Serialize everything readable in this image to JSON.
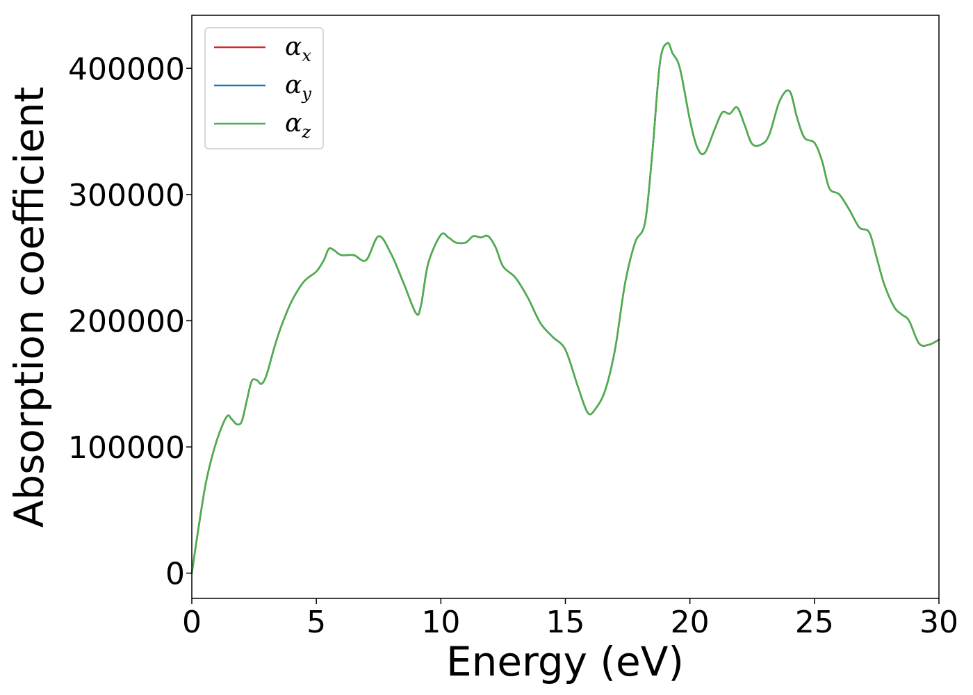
{
  "chart_data": {
    "type": "line",
    "title": "",
    "xlabel": "Energy (eV)",
    "ylabel": "Absorption coefficient",
    "xlim": [
      0,
      30
    ],
    "ylim": [
      -20000,
      442000
    ],
    "xticks": [
      0,
      5,
      10,
      15,
      20,
      25,
      30
    ],
    "yticks": [
      0,
      100000,
      200000,
      300000,
      400000
    ],
    "grid": false,
    "legend_position": "top-left",
    "legend": [
      {
        "symbol": "α",
        "subscript": "x",
        "color": "#d62728"
      },
      {
        "symbol": "α",
        "subscript": "y",
        "color": "#1f77b4"
      },
      {
        "symbol": "α",
        "subscript": "z",
        "color": "#4daf4a"
      }
    ],
    "x": [
      0,
      0.3,
      0.6,
      1.0,
      1.4,
      1.6,
      1.8,
      2.0,
      2.2,
      2.4,
      2.6,
      2.8,
      3.0,
      3.3,
      3.6,
      4.0,
      4.5,
      5.0,
      5.3,
      5.5,
      5.7,
      6.0,
      6.5,
      7.0,
      7.5,
      8.0,
      8.5,
      9.0,
      9.2,
      9.5,
      10.0,
      10.3,
      10.6,
      11.0,
      11.3,
      11.6,
      11.9,
      12.2,
      12.5,
      13.0,
      13.5,
      14.0,
      14.5,
      15.0,
      15.5,
      15.9,
      16.2,
      16.6,
      17.0,
      17.4,
      17.8,
      18.2,
      18.5,
      18.8,
      19.1,
      19.3,
      19.6,
      20.0,
      20.3,
      20.6,
      21.0,
      21.3,
      21.6,
      21.9,
      22.2,
      22.5,
      22.9,
      23.2,
      23.6,
      24.0,
      24.3,
      24.6,
      25.0,
      25.3,
      25.6,
      26.0,
      26.4,
      26.8,
      27.2,
      27.5,
      27.8,
      28.2,
      28.5,
      28.8,
      29.2,
      29.6,
      30.0
    ],
    "series": [
      {
        "label": "x",
        "color": "#d62728",
        "values": [
          0,
          40000,
          75000,
          105000,
          124000,
          122000,
          118000,
          120000,
          136000,
          152000,
          153000,
          150000,
          157000,
          178000,
          196000,
          215000,
          231000,
          239000,
          248000,
          257000,
          256000,
          252000,
          252000,
          248000,
          267000,
          253000,
          230000,
          206000,
          212000,
          246000,
          268000,
          266000,
          262000,
          262000,
          267000,
          266000,
          267000,
          258000,
          243000,
          234000,
          218000,
          198000,
          187000,
          177000,
          148000,
          127000,
          130000,
          145000,
          178000,
          230000,
          262000,
          278000,
          335000,
          405000,
          420000,
          412000,
          400000,
          359000,
          337000,
          333000,
          352000,
          365000,
          364000,
          369000,
          355000,
          340000,
          340000,
          348000,
          374000,
          382000,
          361000,
          345000,
          341000,
          327000,
          305000,
          300000,
          288000,
          274000,
          270000,
          250000,
          229000,
          211000,
          205000,
          200000,
          182000,
          181000,
          185000
        ]
      },
      {
        "label": "y",
        "color": "#1f77b4",
        "values": [
          0,
          40000,
          75000,
          105000,
          124000,
          122000,
          118000,
          120000,
          136000,
          152000,
          153000,
          150000,
          157000,
          178000,
          196000,
          215000,
          231000,
          239000,
          248000,
          257000,
          256000,
          252000,
          252000,
          248000,
          267000,
          253000,
          230000,
          206000,
          212000,
          246000,
          268000,
          266000,
          262000,
          262000,
          267000,
          266000,
          267000,
          258000,
          243000,
          234000,
          218000,
          198000,
          187000,
          177000,
          148000,
          127000,
          130000,
          145000,
          178000,
          230000,
          262000,
          278000,
          335000,
          405000,
          420000,
          412000,
          400000,
          359000,
          337000,
          333000,
          352000,
          365000,
          364000,
          369000,
          355000,
          340000,
          340000,
          348000,
          374000,
          382000,
          361000,
          345000,
          341000,
          327000,
          305000,
          300000,
          288000,
          274000,
          270000,
          250000,
          229000,
          211000,
          205000,
          200000,
          182000,
          181000,
          185000
        ]
      },
      {
        "label": "z",
        "color": "#4daf4a",
        "values": [
          0,
          40000,
          75000,
          105000,
          124000,
          122000,
          118000,
          120000,
          136000,
          152000,
          153000,
          150000,
          157000,
          178000,
          196000,
          215000,
          231000,
          239000,
          248000,
          257000,
          256000,
          252000,
          252000,
          248000,
          267000,
          253000,
          230000,
          206000,
          212000,
          246000,
          268000,
          266000,
          262000,
          262000,
          267000,
          266000,
          267000,
          258000,
          243000,
          234000,
          218000,
          198000,
          187000,
          177000,
          148000,
          127000,
          130000,
          145000,
          178000,
          230000,
          262000,
          278000,
          335000,
          405000,
          420000,
          412000,
          400000,
          359000,
          337000,
          333000,
          352000,
          365000,
          364000,
          369000,
          355000,
          340000,
          340000,
          348000,
          374000,
          382000,
          361000,
          345000,
          341000,
          327000,
          305000,
          300000,
          288000,
          274000,
          270000,
          250000,
          229000,
          211000,
          205000,
          200000,
          182000,
          181000,
          185000
        ]
      }
    ]
  }
}
